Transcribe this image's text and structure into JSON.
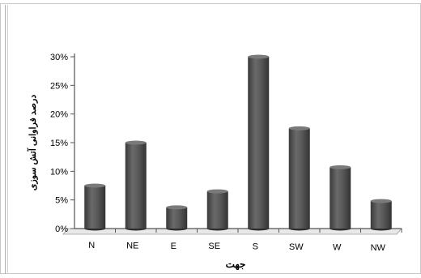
{
  "chart_data": {
    "type": "bar",
    "title": "",
    "xlabel": "جهت",
    "ylabel": "درصد فراوانی آتش سوزی",
    "categories": [
      "N",
      "NE",
      "E",
      "SE",
      "S",
      "SW",
      "W",
      "NW"
    ],
    "values": [
      7.5,
      15,
      3.7,
      6.5,
      30,
      17.5,
      10.7,
      4.8
    ],
    "ylim": [
      0,
      30
    ],
    "yticks": [
      "0%",
      "5%",
      "10%",
      "15%",
      "20%",
      "25%",
      "30%"
    ],
    "grid": false,
    "legend": "none",
    "bar_color": "#555555"
  }
}
